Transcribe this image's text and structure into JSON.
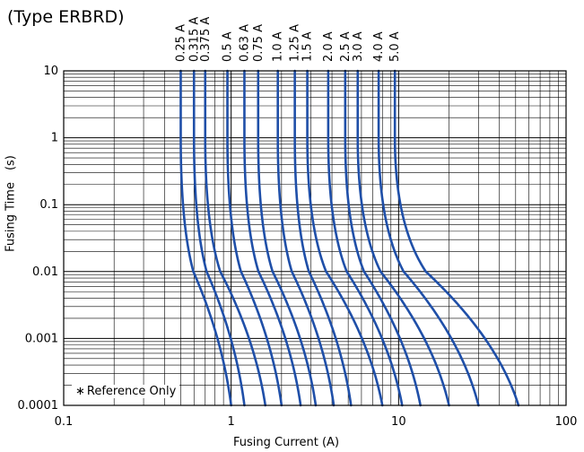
{
  "chart_data": {
    "type": "line",
    "title": "(Type ERBRD)",
    "xlabel": "Fusing Current (A)",
    "ylabel": "Fusing Time　(s)",
    "x_scale": "log",
    "y_scale": "log",
    "xlim": [
      0.1,
      100
    ],
    "ylim": [
      0.0001,
      10
    ],
    "x_ticks": [
      "0.1",
      "1",
      "10",
      "100"
    ],
    "y_ticks": [
      "0.0001",
      "0.001",
      "0.01",
      "0.1",
      "1",
      "10"
    ],
    "grid": true,
    "annotation": "Reference Only",
    "annotation_mark": "∗",
    "line_color": "#1f4fa8",
    "series": [
      {
        "name": "0.25 A",
        "asymptote": 0.5,
        "x_at_min": 1.0,
        "points": [
          [
            0.5,
            10
          ],
          [
            0.5,
            1
          ],
          [
            0.51,
            0.2
          ],
          [
            0.54,
            0.05
          ],
          [
            0.6,
            0.01
          ],
          [
            0.68,
            0.003
          ],
          [
            0.8,
            0.0006
          ],
          [
            1.0,
            0.0001
          ]
        ]
      },
      {
        "name": "0.315 A",
        "asymptote": 0.6,
        "x_at_min": 1.2,
        "points": [
          [
            0.6,
            10
          ],
          [
            0.6,
            1
          ],
          [
            0.61,
            0.2
          ],
          [
            0.65,
            0.05
          ],
          [
            0.72,
            0.01
          ],
          [
            0.82,
            0.003
          ],
          [
            0.96,
            0.0006
          ],
          [
            1.2,
            0.0001
          ]
        ]
      },
      {
        "name": "0.375 A",
        "asymptote": 0.7,
        "x_at_min": 1.6,
        "points": [
          [
            0.7,
            10
          ],
          [
            0.7,
            1
          ],
          [
            0.71,
            0.2
          ],
          [
            0.76,
            0.05
          ],
          [
            0.85,
            0.01
          ],
          [
            0.98,
            0.003
          ],
          [
            1.2,
            0.0006
          ],
          [
            1.6,
            0.0001
          ]
        ]
      },
      {
        "name": "0.5 A",
        "asymptote": 0.95,
        "x_at_min": 2.0,
        "points": [
          [
            0.95,
            10
          ],
          [
            0.95,
            1
          ],
          [
            0.97,
            0.2
          ],
          [
            1.03,
            0.05
          ],
          [
            1.15,
            0.01
          ],
          [
            1.33,
            0.003
          ],
          [
            1.58,
            0.0006
          ],
          [
            2.0,
            0.0001
          ]
        ]
      },
      {
        "name": "0.63 A",
        "asymptote": 1.2,
        "x_at_min": 2.6,
        "points": [
          [
            1.2,
            10
          ],
          [
            1.2,
            1
          ],
          [
            1.22,
            0.2
          ],
          [
            1.3,
            0.05
          ],
          [
            1.45,
            0.01
          ],
          [
            1.68,
            0.003
          ],
          [
            2.02,
            0.0006
          ],
          [
            2.6,
            0.0001
          ]
        ]
      },
      {
        "name": "0.75 A",
        "asymptote": 1.45,
        "x_at_min": 3.2,
        "points": [
          [
            1.45,
            10
          ],
          [
            1.45,
            1
          ],
          [
            1.48,
            0.2
          ],
          [
            1.57,
            0.05
          ],
          [
            1.75,
            0.01
          ],
          [
            2.03,
            0.003
          ],
          [
            2.45,
            0.0006
          ],
          [
            3.2,
            0.0001
          ]
        ]
      },
      {
        "name": "1.0 A",
        "asymptote": 1.9,
        "x_at_min": 4.1,
        "points": [
          [
            1.9,
            10
          ],
          [
            1.9,
            1
          ],
          [
            1.94,
            0.2
          ],
          [
            2.06,
            0.05
          ],
          [
            2.3,
            0.01
          ],
          [
            2.66,
            0.003
          ],
          [
            3.2,
            0.0006
          ],
          [
            4.1,
            0.0001
          ]
        ]
      },
      {
        "name": "1.25 A",
        "asymptote": 2.4,
        "x_at_min": 5.2,
        "points": [
          [
            2.4,
            10
          ],
          [
            2.4,
            1
          ],
          [
            2.45,
            0.2
          ],
          [
            2.6,
            0.05
          ],
          [
            2.9,
            0.01
          ],
          [
            3.36,
            0.003
          ],
          [
            4.05,
            0.0006
          ],
          [
            5.2,
            0.0001
          ]
        ]
      },
      {
        "name": "1.5 A",
        "asymptote": 2.85,
        "x_at_min": 8.0,
        "points": [
          [
            2.85,
            10
          ],
          [
            2.85,
            1
          ],
          [
            2.92,
            0.2
          ],
          [
            3.15,
            0.05
          ],
          [
            3.65,
            0.01
          ],
          [
            4.45,
            0.003
          ],
          [
            5.7,
            0.0006
          ],
          [
            8.0,
            0.0001
          ]
        ]
      },
      {
        "name": "2.0 A",
        "asymptote": 3.8,
        "x_at_min": 10.5,
        "points": [
          [
            3.8,
            10
          ],
          [
            3.8,
            1
          ],
          [
            3.9,
            0.2
          ],
          [
            4.2,
            0.05
          ],
          [
            4.85,
            0.01
          ],
          [
            5.9,
            0.003
          ],
          [
            7.55,
            0.0006
          ],
          [
            10.5,
            0.0001
          ]
        ]
      },
      {
        "name": "2.5 A",
        "asymptote": 4.8,
        "x_at_min": 13.5,
        "points": [
          [
            4.8,
            10
          ],
          [
            4.8,
            1
          ],
          [
            4.92,
            0.2
          ],
          [
            5.3,
            0.05
          ],
          [
            6.15,
            0.01
          ],
          [
            7.5,
            0.003
          ],
          [
            9.65,
            0.0006
          ],
          [
            13.5,
            0.0001
          ]
        ]
      },
      {
        "name": "3.0 A",
        "asymptote": 5.7,
        "x_at_min": 20.0,
        "points": [
          [
            5.7,
            10
          ],
          [
            5.7,
            1
          ],
          [
            5.85,
            0.2
          ],
          [
            6.4,
            0.05
          ],
          [
            7.6,
            0.01
          ],
          [
            9.7,
            0.003
          ],
          [
            13.3,
            0.0006
          ],
          [
            20.0,
            0.0001
          ]
        ]
      },
      {
        "name": "4.0 A",
        "asymptote": 7.6,
        "x_at_min": 30.0,
        "points": [
          [
            7.6,
            10
          ],
          [
            7.6,
            1
          ],
          [
            7.8,
            0.2
          ],
          [
            8.55,
            0.05
          ],
          [
            10.2,
            0.01
          ],
          [
            13.2,
            0.003
          ],
          [
            18.6,
            0.0006
          ],
          [
            30.0,
            0.0001
          ]
        ]
      },
      {
        "name": "5.0 A",
        "asymptote": 9.5,
        "x_at_min": 52.0,
        "points": [
          [
            9.5,
            10
          ],
          [
            9.5,
            1
          ],
          [
            9.8,
            0.2
          ],
          [
            10.9,
            0.05
          ],
          [
            13.4,
            0.01
          ],
          [
            18.2,
            0.003
          ],
          [
            27.8,
            0.0006
          ],
          [
            52.0,
            0.0001
          ]
        ]
      }
    ]
  }
}
